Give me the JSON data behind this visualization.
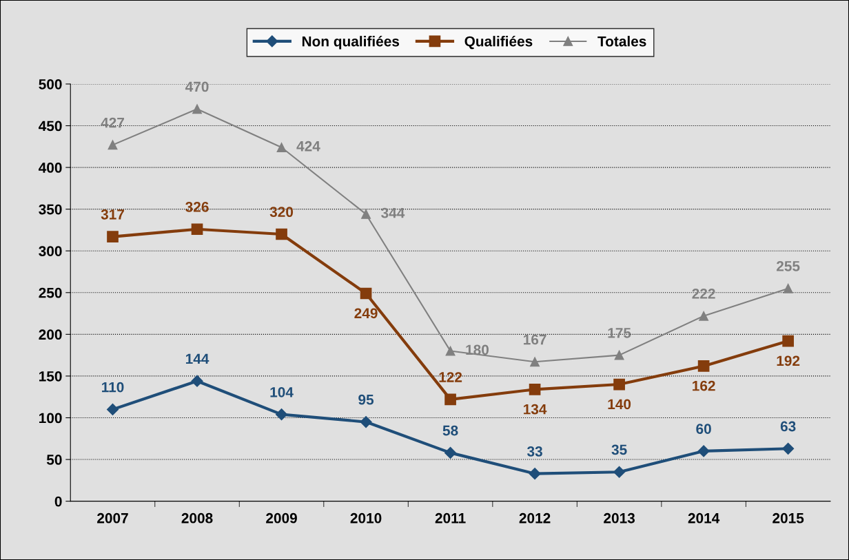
{
  "chart_data": {
    "type": "line",
    "categories": [
      "2007",
      "2008",
      "2009",
      "2010",
      "2011",
      "2012",
      "2013",
      "2014",
      "2015"
    ],
    "series": [
      {
        "name": "Non qualifiées",
        "color": "#1f4e79",
        "values": [
          110,
          144,
          104,
          95,
          58,
          33,
          35,
          60,
          63
        ],
        "marker": "diamond"
      },
      {
        "name": "Qualifiées",
        "color": "#843c0c",
        "values": [
          317,
          326,
          320,
          249,
          122,
          134,
          140,
          162,
          192
        ],
        "marker": "square"
      },
      {
        "name": "Totales",
        "color": "#808080",
        "values": [
          427,
          470,
          424,
          344,
          180,
          167,
          175,
          222,
          255
        ],
        "marker": "triangle"
      }
    ],
    "ylim": [
      0,
      500
    ],
    "yticks": [
      0,
      50,
      100,
      150,
      200,
      250,
      300,
      350,
      400,
      450,
      500
    ],
    "grid": "y",
    "legend": "top",
    "data_labels": true,
    "line_style": "solid"
  }
}
